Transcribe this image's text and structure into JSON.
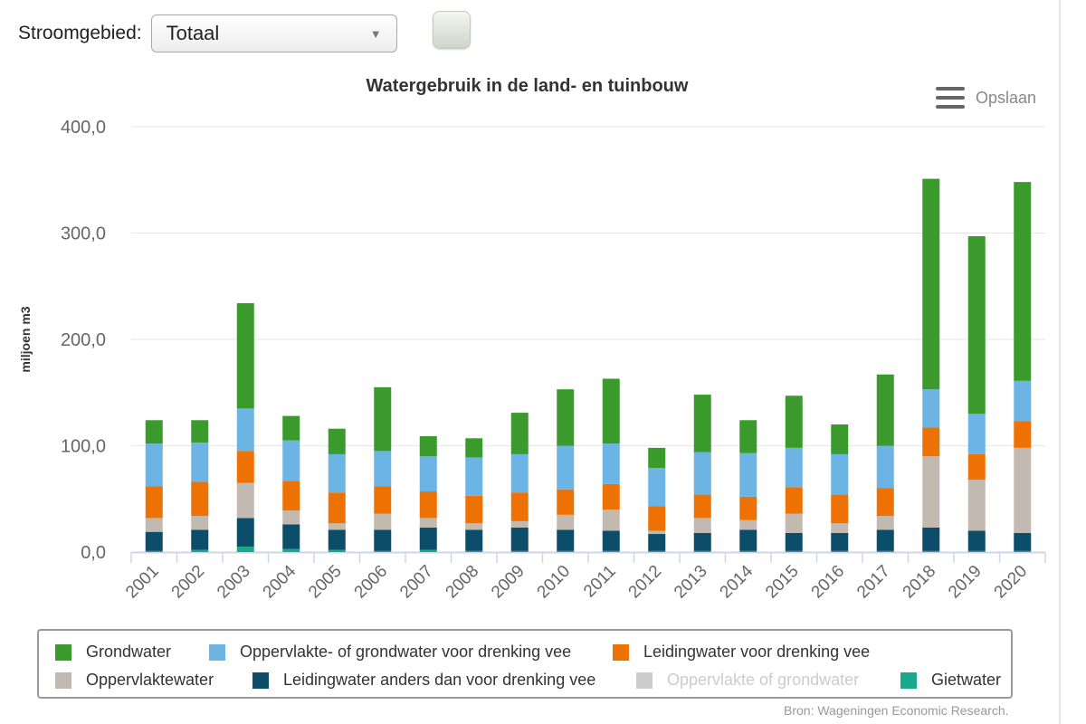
{
  "filter": {
    "label": "Stroomgebied:",
    "selected": "Totaal",
    "arrow": "▼"
  },
  "chart": {
    "title": "Watergebruik in de land- en tuinbouw",
    "menu_label": "Opslaan"
  },
  "credits": "Bron: Wageningen Economic Research.",
  "chart_data": {
    "type": "bar",
    "stacked": true,
    "title": "Watergebruik in de land- en tuinbouw",
    "xlabel": "",
    "ylabel": "miljoen m3",
    "ylim": [
      0,
      400
    ],
    "yticks": [
      "0,0",
      "100,0",
      "200,0",
      "300,0",
      "400,0"
    ],
    "grid": true,
    "legend_position": "bottom",
    "categories": [
      "2001",
      "2002",
      "2003",
      "2004",
      "2005",
      "2006",
      "2007",
      "2008",
      "2009",
      "2010",
      "2011",
      "2012",
      "2013",
      "2014",
      "2015",
      "2016",
      "2017",
      "2018",
      "2019",
      "2020"
    ],
    "series": [
      {
        "name": "Gietwater",
        "color": "#1aa88a",
        "visible": true,
        "values": [
          1,
          2,
          5,
          3,
          2,
          1,
          2,
          1,
          1,
          1,
          1,
          1,
          1,
          1,
          1,
          1,
          1,
          1,
          1,
          1
        ]
      },
      {
        "name": "Leidingwater anders dan voor drenking vee",
        "color": "#0c4d69",
        "visible": true,
        "values": [
          18,
          19,
          27,
          23,
          19,
          20,
          21,
          20,
          22,
          20,
          19,
          16,
          17,
          20,
          17,
          17,
          20,
          22,
          19,
          17
        ]
      },
      {
        "name": "Oppervlakte of grondwater",
        "color": "#cccccc",
        "visible": false,
        "values": [
          0,
          0,
          0,
          0,
          0,
          0,
          0,
          0,
          0,
          0,
          0,
          0,
          0,
          0,
          0,
          0,
          0,
          0,
          0,
          0
        ]
      },
      {
        "name": "Oppervlaktewater",
        "color": "#c2bab0",
        "visible": true,
        "values": [
          13,
          13,
          33,
          13,
          6,
          15,
          9,
          6,
          6,
          14,
          20,
          3,
          14,
          9,
          18,
          9,
          13,
          67,
          48,
          80
        ]
      },
      {
        "name": "Leidingwater voor drenking vee",
        "color": "#ee7203",
        "visible": true,
        "values": [
          30,
          32,
          30,
          28,
          29,
          26,
          25,
          26,
          27,
          24,
          24,
          23,
          22,
          22,
          25,
          27,
          26,
          27,
          24,
          25
        ]
      },
      {
        "name": "Oppervlakte- of grondwater voor drenking vee",
        "color": "#6cb4e4",
        "visible": true,
        "values": [
          40,
          37,
          40,
          38,
          36,
          33,
          33,
          36,
          36,
          41,
          38,
          36,
          40,
          41,
          37,
          38,
          40,
          36,
          38,
          38
        ]
      },
      {
        "name": "Grondwater",
        "color": "#3a9a2c",
        "visible": true,
        "values": [
          22,
          21,
          99,
          23,
          24,
          60,
          19,
          18,
          39,
          53,
          61,
          19,
          54,
          31,
          49,
          28,
          67,
          198,
          167,
          187
        ]
      }
    ]
  },
  "legend": {
    "items": [
      {
        "label": "Grondwater",
        "color": "#3a9a2c",
        "visible": true
      },
      {
        "label": "Oppervlakte- of grondwater voor drenking vee",
        "color": "#6cb4e4",
        "visible": true
      },
      {
        "label": "Leidingwater voor drenking vee",
        "color": "#ee7203",
        "visible": true
      },
      {
        "label": "Oppervlaktewater",
        "color": "#c2bab0",
        "visible": true
      },
      {
        "label": "Leidingwater anders dan voor drenking vee",
        "color": "#0c4d69",
        "visible": true
      },
      {
        "label": "Oppervlakte of grondwater",
        "color": "#cccccc",
        "visible": false
      },
      {
        "label": "Gietwater",
        "color": "#1aa88a",
        "visible": true
      }
    ]
  }
}
